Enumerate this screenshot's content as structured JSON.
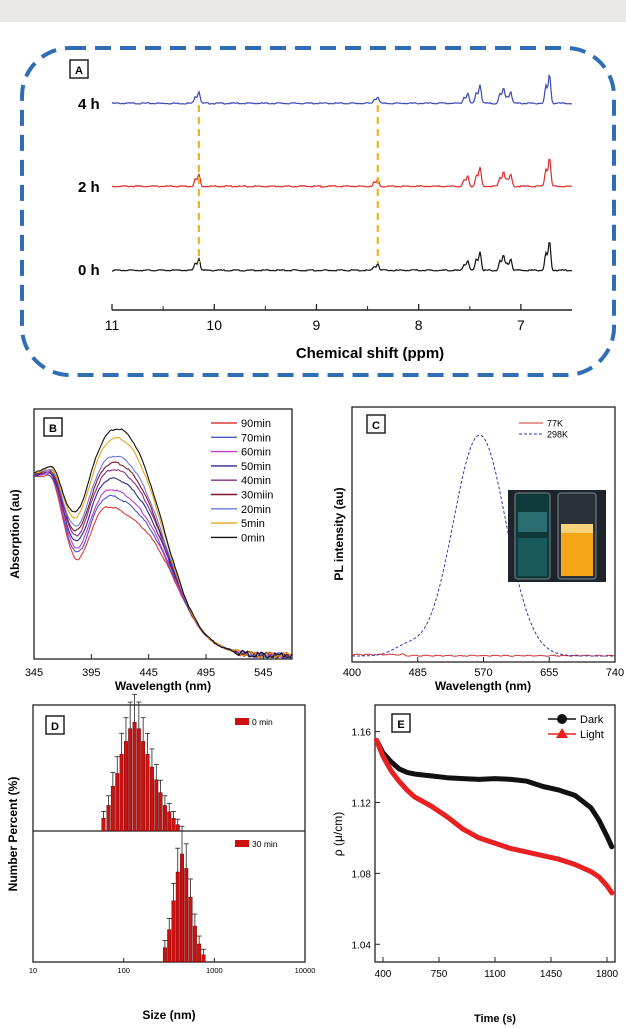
{
  "chart_data": [
    {
      "panel": "A",
      "type": "line",
      "xlabel": "Chemical shift (ppm)",
      "xlim": [
        11,
        6.5
      ],
      "xticks": [
        "11",
        "10",
        "9",
        "8",
        "7"
      ],
      "series": [
        {
          "name": "4 h",
          "color": "#3b47b6"
        },
        {
          "name": "2 h",
          "color": "#e02a2a"
        },
        {
          "name": "0 h",
          "color": "#111111"
        }
      ],
      "peaks_ppm": [
        10.15,
        8.4,
        7.52,
        7.4,
        7.17,
        7.1,
        6.72
      ],
      "peak_heights": [
        0.35,
        0.2,
        0.3,
        0.55,
        0.45,
        0.35,
        0.85
      ],
      "dashed_markers_ppm": [
        10.15,
        8.4
      ],
      "marker_color": "#f2b31f"
    },
    {
      "panel": "B",
      "type": "line",
      "xlabel": "Wavelength (nm)",
      "ylabel": "Absorption (au)",
      "xlim": [
        345,
        570
      ],
      "xticks": [
        "345",
        "395",
        "445",
        "495",
        "545"
      ],
      "legend": "top-right",
      "series": [
        {
          "name": "90min",
          "color": "#e03a3a",
          "peak": 0.55
        },
        {
          "name": "70min",
          "color": "#4d55c8",
          "peak": 0.6
        },
        {
          "name": "60min",
          "color": "#c23cc2",
          "peak": 0.63
        },
        {
          "name": "50min",
          "color": "#2a2a8a",
          "peak": 0.68
        },
        {
          "name": "40min",
          "color": "#8a2a8a",
          "peak": 0.72
        },
        {
          "name": "30miin",
          "color": "#7a1a2a",
          "peak": 0.75
        },
        {
          "name": "20min",
          "color": "#6a7ad8",
          "peak": 0.78
        },
        {
          "name": "5min",
          "color": "#e6a51a",
          "peak": 0.86
        },
        {
          "name": "0min",
          "color": "#111111",
          "peak": 0.9
        }
      ]
    },
    {
      "panel": "C",
      "type": "line",
      "xlabel": "Wavelength (nm)",
      "ylabel": "PL intensity (au)",
      "xlim": [
        400,
        740
      ],
      "xticks": [
        "400",
        "485",
        "570",
        "655",
        "740"
      ],
      "legend": "top-right",
      "series": [
        {
          "name": "77K",
          "color": "#d03030",
          "style": "solid"
        },
        {
          "name": "298K",
          "color": "#3a3aa8",
          "style": "dashed",
          "peak_x": 565
        }
      ],
      "inset": "photo of two vials"
    },
    {
      "panel": "D",
      "type": "bar",
      "xlabel": "Size (nm)",
      "ylabel": "Number Percent (%)",
      "xscale": "log",
      "xticks": [
        "10",
        "100",
        "1000",
        "10000"
      ],
      "series": [
        {
          "name": "0 min",
          "color": "#d01010",
          "sizes": [
            60,
            68,
            76,
            85,
            95,
            106,
            118,
            132,
            147,
            164,
            183,
            205,
            229,
            255,
            285,
            318,
            355,
            395
          ],
          "values": [
            2,
            4,
            7,
            9,
            12,
            14,
            16,
            17,
            16,
            14,
            12,
            10,
            8,
            6,
            4,
            3,
            2,
            1
          ]
        },
        {
          "name": "30 min",
          "color": "#d01010",
          "sizes": [
            285,
            318,
            355,
            395,
            440,
            490,
            547,
            610,
            680,
            760
          ],
          "values": [
            4,
            9,
            17,
            25,
            30,
            26,
            18,
            10,
            5,
            2
          ]
        }
      ]
    },
    {
      "panel": "E",
      "type": "line",
      "xlabel": "Time (s)",
      "ylabel": "ρ (μ/cm)",
      "xlim": [
        350,
        1850
      ],
      "ylim": [
        1.03,
        1.175
      ],
      "xticks": [
        400,
        750,
        1100,
        1450,
        1800
      ],
      "yticks": [
        1.04,
        1.08,
        1.12,
        1.16
      ],
      "legend": "top-right",
      "series": [
        {
          "name": "Dark",
          "color": "#111111",
          "x": [
            360,
            400,
            450,
            500,
            550,
            600,
            700,
            800,
            900,
            1000,
            1100,
            1200,
            1300,
            1400,
            1500,
            1600,
            1700,
            1750,
            1800,
            1830
          ],
          "y": [
            1.155,
            1.148,
            1.143,
            1.139,
            1.137,
            1.136,
            1.135,
            1.134,
            1.1335,
            1.133,
            1.1335,
            1.133,
            1.132,
            1.129,
            1.127,
            1.124,
            1.117,
            1.11,
            1.101,
            1.095
          ]
        },
        {
          "name": "Light",
          "color": "#e82020",
          "x": [
            360,
            400,
            450,
            500,
            550,
            600,
            700,
            800,
            900,
            1000,
            1100,
            1200,
            1300,
            1400,
            1500,
            1600,
            1700,
            1750,
            1800,
            1830
          ],
          "y": [
            1.155,
            1.146,
            1.138,
            1.132,
            1.127,
            1.123,
            1.118,
            1.112,
            1.105,
            1.1,
            1.097,
            1.094,
            1.092,
            1.09,
            1.088,
            1.085,
            1.081,
            1.078,
            1.073,
            1.069
          ]
        }
      ]
    }
  ],
  "panelA": {
    "label": "A",
    "trace_labels": [
      "4 h",
      "2 h",
      "0 h"
    ],
    "xlabel": "Chemical shift (ppm)"
  },
  "panelB": {
    "label": "B",
    "ylabel": "Absorption (au)",
    "xlabel": "Wavelength (nm)"
  },
  "panelC": {
    "label": "C",
    "ylabel": "PL intensity (au)",
    "xlabel": "Wavelength (nm)"
  },
  "panelD": {
    "label": "D",
    "ylabel": "Number Percent (%)",
    "xlabel": "Size (nm)"
  },
  "panelE": {
    "label": "E",
    "ylabel": "ρ (μ/cm)",
    "xlabel": "Time (s)"
  }
}
